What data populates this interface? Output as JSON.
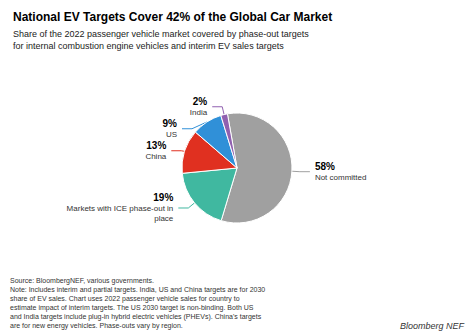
{
  "chart_data": {
    "type": "pie",
    "title": "National EV Targets Cover 42% of the Global Car Market",
    "subtitle": "Share of the 2022 passenger vehicle market covered by phase-out targets\nfor internal combustion engine vehicles and interim EV sales targets",
    "categories": [
      "Not committed",
      "Markets with ICE phase-out in\nplace",
      "China",
      "US",
      "India"
    ],
    "values": [
      58,
      19,
      13,
      9,
      2
    ],
    "value_labels": [
      "58%",
      "19%",
      "13%",
      "9%",
      "2%"
    ],
    "colors": [
      "#a0a0a0",
      "#40b8a0",
      "#e03020",
      "#3090d8",
      "#9060b0"
    ],
    "data_labels": true,
    "annotations": [
      "Source: BloombergNEF, various governments.\nNote: Includes interim and partial targets. India, US and China targets are for 2030\nshare of EV sales. Chart uses 2022 passenger vehicle sales for country to\nestimate impact of interim targets. The US 2030 target is non-binding. Both US\nand India targets include plug-in hybrid electric vehicles (PHEVs). China's targets\nare for new energy vehicles. Phase-outs vary by region.",
      "Bloomberg NEF"
    ]
  }
}
